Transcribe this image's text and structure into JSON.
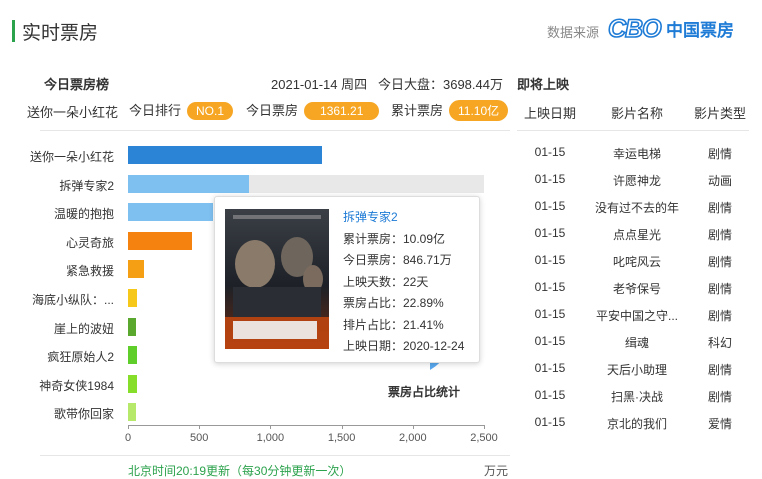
{
  "header": {
    "title": "实时票房",
    "source_label": "数据来源",
    "logo_text": "中国票房",
    "logo_mark": "CBO"
  },
  "today_panel": {
    "title": "今日票房榜",
    "date": "2021-01-14 周四",
    "total_label": "今日大盘：",
    "total_value": "3698.44万"
  },
  "summary": {
    "movie": "送你一朵小红花",
    "rank_label": "今日排行",
    "rank_value": "NO.1",
    "today_label": "今日票房",
    "today_value": "1361.21",
    "total_label": "累计票房",
    "total_value": "11.10亿"
  },
  "chart_data": {
    "type": "bar",
    "orientation": "horizontal",
    "categories": [
      "送你一朵小红花",
      "拆弹专家2",
      "温暖的抱抱",
      "心灵奇旅",
      "紧急救援",
      "海底小纵队：...",
      "崖上的波妞",
      "疯狂原始人2",
      "神奇女侠1984",
      "歌带你回家"
    ],
    "values": [
      1361.21,
      846.71,
      600,
      450,
      110,
      60,
      55,
      60,
      65,
      55
    ],
    "highlight_index": 1,
    "xlim": [
      0,
      2500
    ],
    "xticks": [
      "0",
      "500",
      "1,000",
      "1,500",
      "2,000",
      "2,500"
    ],
    "colors": [
      "#2b84d6",
      "#7ec0f0",
      "#7ec0f0",
      "#f5820f",
      "#f5a014",
      "#f5c81a",
      "#5aa82e",
      "#5fce2a",
      "#86dd2a",
      "#b6e86a"
    ],
    "unit": "万元"
  },
  "tooltip": {
    "name": "拆弹专家2",
    "lines": [
      "累计票房：10.09亿",
      "今日票房：846.71万",
      "上映天数：22天",
      "票房占比：22.89%",
      "排片占比：21.41%",
      "上映日期：2020-12-24"
    ]
  },
  "pie_label": "票房占比统计",
  "footer": {
    "note": "北京时间20:19更新（每30分钟更新一次）",
    "unit": "万元"
  },
  "upcoming": {
    "title": "即将上映",
    "headers": [
      "上映日期",
      "影片名称",
      "影片类型"
    ],
    "rows": [
      [
        "01-15",
        "幸运电梯",
        "剧情"
      ],
      [
        "01-15",
        "许愿神龙",
        "动画"
      ],
      [
        "01-15",
        "没有过不去的年",
        "剧情"
      ],
      [
        "01-15",
        "点点星光",
        "剧情"
      ],
      [
        "01-15",
        "叱咤风云",
        "剧情"
      ],
      [
        "01-15",
        "老爷保号",
        "剧情"
      ],
      [
        "01-15",
        "平安中国之守...",
        "剧情"
      ],
      [
        "01-15",
        "缉魂",
        "科幻"
      ],
      [
        "01-15",
        "天后小助理",
        "剧情"
      ],
      [
        "01-15",
        "扫黑·决战",
        "剧情"
      ],
      [
        "01-15",
        "京北的我们",
        "爱情"
      ]
    ]
  }
}
